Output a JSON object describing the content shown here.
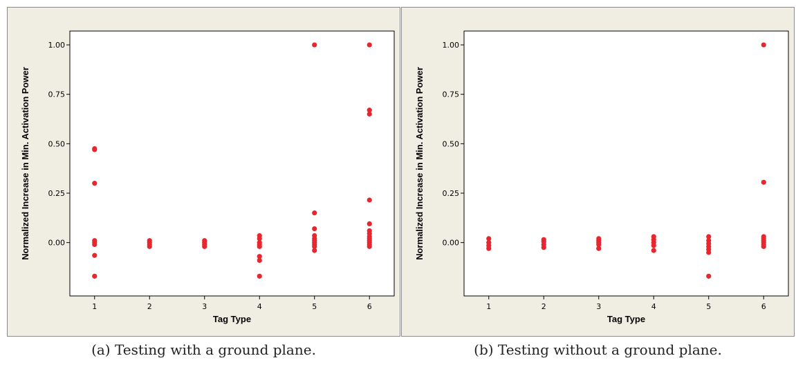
{
  "chart_data": [
    {
      "type": "scatter",
      "title": "",
      "xlabel": "Tag Type",
      "ylabel": "Normalized Increase in Min. Activation Power",
      "x_ticks": [
        1,
        2,
        3,
        4,
        5,
        6
      ],
      "x_tick_labels": [
        "1",
        "2",
        "3",
        "4",
        "5",
        "6"
      ],
      "y_ticks": [
        0.0,
        0.25,
        0.5,
        0.75,
        1.0
      ],
      "y_tick_labels": [
        "0.00",
        "0.25",
        "0.50",
        "0.75",
        "1.00"
      ],
      "xlim": [
        0.55,
        6.45
      ],
      "ylim": [
        -0.27,
        1.07
      ],
      "grid": false,
      "marker_color": "#e8262f",
      "points": [
        [
          1,
          0.475
        ],
        [
          1,
          0.47
        ],
        [
          1,
          0.3
        ],
        [
          1,
          0.01
        ],
        [
          1,
          0.0
        ],
        [
          1,
          -0.01
        ],
        [
          1,
          -0.065
        ],
        [
          1,
          -0.17
        ],
        [
          2,
          0.01
        ],
        [
          2,
          0.0
        ],
        [
          2,
          -0.01
        ],
        [
          2,
          -0.02
        ],
        [
          3,
          0.01
        ],
        [
          3,
          0.0
        ],
        [
          3,
          -0.01
        ],
        [
          3,
          -0.02
        ],
        [
          4,
          0.035
        ],
        [
          4,
          0.02
        ],
        [
          4,
          0.0
        ],
        [
          4,
          -0.01
        ],
        [
          4,
          -0.02
        ],
        [
          4,
          -0.07
        ],
        [
          4,
          -0.09
        ],
        [
          4,
          -0.17
        ],
        [
          5,
          1.0
        ],
        [
          5,
          0.15
        ],
        [
          5,
          0.07
        ],
        [
          5,
          0.035
        ],
        [
          5,
          0.02
        ],
        [
          5,
          0.01
        ],
        [
          5,
          0.0
        ],
        [
          5,
          -0.01
        ],
        [
          5,
          -0.02
        ],
        [
          5,
          -0.04
        ],
        [
          6,
          1.0
        ],
        [
          6,
          0.67
        ],
        [
          6,
          0.65
        ],
        [
          6,
          0.215
        ],
        [
          6,
          0.095
        ],
        [
          6,
          0.06
        ],
        [
          6,
          0.045
        ],
        [
          6,
          0.03
        ],
        [
          6,
          0.02
        ],
        [
          6,
          0.01
        ],
        [
          6,
          0.0
        ],
        [
          6,
          -0.01
        ],
        [
          6,
          -0.02
        ]
      ],
      "caption": "(a)  Testing with a ground plane."
    },
    {
      "type": "scatter",
      "title": "",
      "xlabel": "Tag Type",
      "ylabel": "Normalized Increase in Min. Activation Power",
      "x_ticks": [
        1,
        2,
        3,
        4,
        5,
        6
      ],
      "x_tick_labels": [
        "1",
        "2",
        "3",
        "4",
        "5",
        "6"
      ],
      "y_ticks": [
        0.0,
        0.25,
        0.5,
        0.75,
        1.0
      ],
      "y_tick_labels": [
        "0.00",
        "0.25",
        "0.50",
        "0.75",
        "1.00"
      ],
      "xlim": [
        0.55,
        6.45
      ],
      "ylim": [
        -0.27,
        1.07
      ],
      "grid": false,
      "marker_color": "#e8262f",
      "points": [
        [
          1,
          0.02
        ],
        [
          1,
          0.0
        ],
        [
          1,
          -0.015
        ],
        [
          1,
          -0.03
        ],
        [
          2,
          0.015
        ],
        [
          2,
          0.005
        ],
        [
          2,
          -0.01
        ],
        [
          2,
          -0.025
        ],
        [
          3,
          0.02
        ],
        [
          3,
          0.01
        ],
        [
          3,
          0.0
        ],
        [
          3,
          -0.01
        ],
        [
          3,
          -0.03
        ],
        [
          4,
          0.03
        ],
        [
          4,
          0.015
        ],
        [
          4,
          0.0
        ],
        [
          4,
          -0.015
        ],
        [
          4,
          -0.04
        ],
        [
          5,
          0.03
        ],
        [
          5,
          0.01
        ],
        [
          5,
          -0.005
        ],
        [
          5,
          -0.02
        ],
        [
          5,
          -0.035
        ],
        [
          5,
          -0.05
        ],
        [
          5,
          -0.17
        ],
        [
          6,
          1.0
        ],
        [
          6,
          0.305
        ],
        [
          6,
          0.03
        ],
        [
          6,
          0.02
        ],
        [
          6,
          0.01
        ],
        [
          6,
          0.0
        ],
        [
          6,
          -0.01
        ],
        [
          6,
          -0.02
        ]
      ],
      "caption": "(b)  Testing without a ground plane."
    }
  ]
}
